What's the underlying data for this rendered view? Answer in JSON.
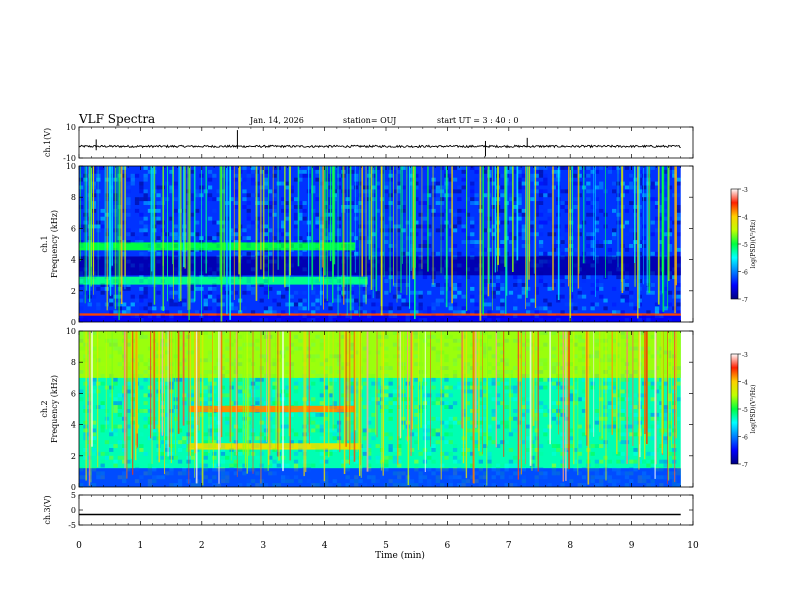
{
  "header": {
    "title": "VLF Spectra",
    "date": "Jan. 14, 2026",
    "station": "station= OUJ",
    "start": "start  UT =   3 : 40 : 0"
  },
  "chart_data": [
    {
      "type": "line",
      "name": "ch1-waveform",
      "ylabel": "ch.1(V)",
      "ylim": [
        -10,
        10
      ],
      "yticks": [
        "10",
        "-10"
      ],
      "baseline": -2.5,
      "spikes": [
        {
          "x": 0.28,
          "y": -5
        },
        {
          "x": 0.28,
          "y": 2
        },
        {
          "x": 2.58,
          "y": 8
        },
        {
          "x": 2.58,
          "y": -4
        },
        {
          "x": 6.62,
          "y": -9
        },
        {
          "x": 6.62,
          "y": 1
        },
        {
          "x": 7.3,
          "y": 3
        }
      ]
    },
    {
      "type": "heatmap",
      "name": "ch1-spectrogram",
      "ylabel": "ch.1\nFrequency (kHz)",
      "xlim": [
        0,
        10
      ],
      "ylim": [
        0,
        10
      ],
      "yticks": [
        "0",
        "2",
        "4",
        "6",
        "8",
        "10"
      ],
      "colorbar": {
        "label": "log(PSD)(V²/Hz)",
        "range": [
          -7,
          -3
        ],
        "ticks": [
          "-3",
          "-4",
          "-5",
          "-6",
          "-7"
        ]
      },
      "bands": [
        {
          "fmin": 0,
          "fmax": 10,
          "level": -6.3
        },
        {
          "fmin": 4.6,
          "fmax": 5.1,
          "level": -5.0,
          "tmax": 4.5
        },
        {
          "fmin": 2.4,
          "fmax": 2.9,
          "level": -5.2,
          "tmax": 4.7
        },
        {
          "fmin": 3.0,
          "fmax": 4.2,
          "level": -6.8
        },
        {
          "fmin": 0.4,
          "fmax": 0.55,
          "level": -3.6
        },
        {
          "fmin": 0,
          "fmax": 0.4,
          "level": -6.5
        }
      ]
    },
    {
      "type": "heatmap",
      "name": "ch2-spectrogram",
      "ylabel": "ch.2\nFrequency (kHz)",
      "xlim": [
        0,
        10
      ],
      "ylim": [
        0,
        10
      ],
      "yticks": [
        "0",
        "2",
        "4",
        "6",
        "8",
        "10"
      ],
      "colorbar": {
        "label": "log(PSD)(V²/Hz)",
        "range": [
          -7,
          -3
        ],
        "ticks": [
          "-3",
          "-4",
          "-5",
          "-6",
          "-7"
        ]
      },
      "bands": [
        {
          "fmin": 0,
          "fmax": 10,
          "level": -5.3
        },
        {
          "fmin": 4.8,
          "fmax": 5.2,
          "level": -3.8,
          "tmin": 1.8,
          "tmax": 4.5
        },
        {
          "fmin": 2.4,
          "fmax": 2.8,
          "level": -4.2,
          "tmin": 1.8,
          "tmax": 4.6
        },
        {
          "fmin": 7.0,
          "fmax": 10,
          "level": -4.6
        },
        {
          "fmin": 0,
          "fmax": 1.2,
          "level": -6.2
        }
      ]
    },
    {
      "type": "line",
      "name": "ch3-waveform",
      "ylabel": "ch.3(V)",
      "ylim": [
        -5,
        5
      ],
      "yticks": [
        "5",
        "0",
        "-5"
      ],
      "baseline": -1.5
    }
  ],
  "time_axis": {
    "xlabel": "Time (min)",
    "xlim": [
      0,
      10
    ],
    "ticks": [
      "0",
      "1",
      "2",
      "3",
      "4",
      "5",
      "6",
      "7",
      "8",
      "9",
      "10"
    ]
  }
}
